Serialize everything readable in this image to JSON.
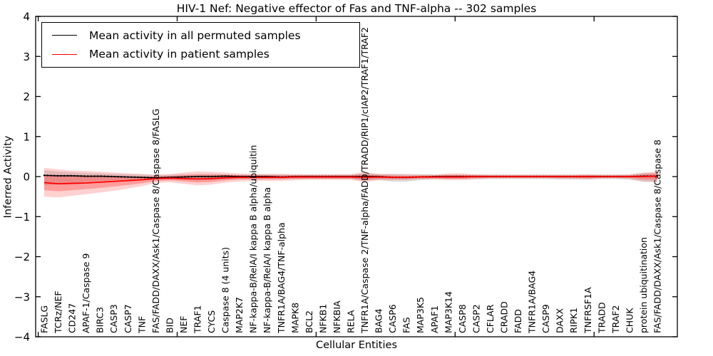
{
  "chart_data": {
    "type": "line",
    "title": "HIV-1 Nef: Negative effector of Fas and TNF-alpha -- 302 samples",
    "xlabel": "Cellular Entities",
    "ylabel": "Inferred Activity",
    "ylim": [
      -4,
      4
    ],
    "xlim": [
      -0.6,
      46.1
    ],
    "grid": false,
    "legend_position": "upper left",
    "yticks": [
      4,
      3,
      2,
      1,
      0,
      -1,
      -2,
      -3,
      -4
    ],
    "yticklabels": [
      "4",
      "3",
      "2",
      "1",
      "0",
      "−1",
      "−2",
      "−3",
      "−4"
    ],
    "xticks_numeric": [
      0,
      10,
      20,
      30,
      40
    ],
    "categories": [
      "FASLG",
      "TCRz/NEF",
      "CD247",
      "APAF-1/Caspase 9",
      "BIRC3",
      "CASP3",
      "CASP7",
      "TNF",
      "FAS/FADD/DAXX/Ask1/Caspase 8/Caspase 8/FASLG",
      "BID",
      "NEF",
      "TRAF1",
      "CYCS",
      "Caspase 8 (4 units)",
      "MAP2K7",
      "NF-kappa-B/RelA/I kappa B alpha/ubiquitin",
      "NF-kappa-B/RelA/I kappa B alpha",
      "TNFR1A/BAG4/TNF-alpha",
      "MAPK8",
      "BCL2",
      "NFKB1",
      "NFKBIA",
      "RELA",
      "TNFR1A/Caspase 2/TNF-alpha/FADD/TRADD/RIP1/cIAP2/TRAF1/TRAF2",
      "BAG4",
      "CASP6",
      "FAS",
      "MAP3K5",
      "APAF1",
      "MAP3K14",
      "CASP8",
      "CASP2",
      "CFLAR",
      "CRADD",
      "FADD",
      "TNFR1A/BAG4",
      "CASP9",
      "DAXX",
      "RIPK1",
      "TNFRSF1A",
      "TRADD",
      "TRAF2",
      "CHUK",
      "protein ubiquitination",
      "FAS/FADD/DAXX/Ask1/Caspase 8/Caspase 8"
    ],
    "series": [
      {
        "name": "Mean activity in all permuted samples",
        "color": "#000000",
        "style": "solid-with-dotted-overlay",
        "values": [
          0.03,
          0.02,
          0.02,
          0.01,
          0.01,
          0.0,
          -0.01,
          -0.02,
          -0.03,
          -0.02,
          -0.01,
          0.0,
          0.0,
          0.01,
          0.0,
          0.0,
          0.0,
          -0.01,
          0.0,
          0.0,
          0.0,
          0.0,
          0.0,
          0.0,
          0.0,
          -0.02,
          -0.02,
          -0.01,
          0.0,
          0.0,
          0.0,
          0.0,
          0.0,
          0.0,
          0.0,
          0.0,
          0.0,
          0.0,
          0.0,
          0.0,
          0.0,
          0.0,
          0.0,
          0.01,
          0.01
        ]
      },
      {
        "name": "Mean activity in patient samples",
        "color": "#ff0000",
        "style": "solid",
        "values": [
          -0.15,
          -0.18,
          -0.17,
          -0.16,
          -0.14,
          -0.12,
          -0.1,
          -0.08,
          -0.05,
          -0.04,
          -0.05,
          -0.06,
          -0.05,
          -0.03,
          -0.02,
          -0.02,
          -0.02,
          -0.02,
          -0.01,
          -0.01,
          -0.01,
          -0.01,
          -0.01,
          -0.02,
          -0.01,
          -0.02,
          -0.02,
          -0.01,
          -0.01,
          -0.01,
          -0.01,
          0.0,
          0.0,
          0.0,
          0.0,
          0.0,
          0.0,
          0.0,
          0.0,
          0.0,
          0.0,
          0.0,
          0.0,
          0.0,
          0.01
        ]
      }
    ],
    "bands": [
      {
        "name": "permuted-samples-band",
        "color": "#000000",
        "alpha": 0.12,
        "upper": [
          0.16,
          0.13,
          0.11,
          0.09,
          0.08,
          0.07,
          0.06,
          0.06,
          0.05,
          0.05,
          0.06,
          0.07,
          0.07,
          0.06,
          0.05,
          0.05,
          0.05,
          0.05,
          0.05,
          0.05,
          0.05,
          0.05,
          0.05,
          0.09,
          0.06,
          0.07,
          0.07,
          0.06,
          0.05,
          0.05,
          0.05,
          0.05,
          0.05,
          0.05,
          0.05,
          0.05,
          0.05,
          0.05,
          0.05,
          0.05,
          0.05,
          0.05,
          0.06,
          0.09,
          0.09
        ],
        "lower": [
          -0.22,
          -0.19,
          -0.16,
          -0.13,
          -0.11,
          -0.09,
          -0.08,
          -0.08,
          -0.07,
          -0.07,
          -0.08,
          -0.09,
          -0.09,
          -0.07,
          -0.06,
          -0.06,
          -0.06,
          -0.06,
          -0.06,
          -0.06,
          -0.06,
          -0.06,
          -0.06,
          -0.1,
          -0.08,
          -0.13,
          -0.13,
          -0.09,
          -0.06,
          -0.06,
          -0.06,
          -0.06,
          -0.06,
          -0.06,
          -0.06,
          -0.06,
          -0.06,
          -0.07,
          -0.07,
          -0.07,
          -0.06,
          -0.06,
          -0.08,
          -0.13,
          -0.13
        ]
      },
      {
        "name": "patient-samples-band",
        "color": "#ff0000",
        "alpha": 0.18,
        "upper": [
          0.22,
          0.18,
          0.15,
          0.14,
          0.12,
          0.1,
          0.08,
          0.06,
          0.04,
          0.06,
          0.1,
          0.13,
          0.12,
          0.1,
          0.08,
          0.07,
          0.07,
          0.07,
          0.06,
          0.06,
          0.06,
          0.06,
          0.06,
          0.11,
          0.07,
          0.06,
          0.05,
          0.05,
          0.05,
          0.08,
          0.08,
          0.06,
          0.05,
          0.05,
          0.05,
          0.05,
          0.05,
          0.05,
          0.05,
          0.06,
          0.05,
          0.05,
          0.05,
          0.1,
          0.13
        ],
        "lower": [
          -0.5,
          -0.52,
          -0.48,
          -0.44,
          -0.4,
          -0.35,
          -0.3,
          -0.24,
          -0.16,
          -0.14,
          -0.18,
          -0.22,
          -0.2,
          -0.15,
          -0.12,
          -0.11,
          -0.11,
          -0.11,
          -0.09,
          -0.08,
          -0.08,
          -0.08,
          -0.08,
          -0.14,
          -0.09,
          -0.09,
          -0.09,
          -0.07,
          -0.07,
          -0.09,
          -0.09,
          -0.07,
          -0.05,
          -0.05,
          -0.05,
          -0.05,
          -0.05,
          -0.06,
          -0.06,
          -0.07,
          -0.05,
          -0.05,
          -0.06,
          -0.12,
          -0.14
        ]
      }
    ]
  }
}
